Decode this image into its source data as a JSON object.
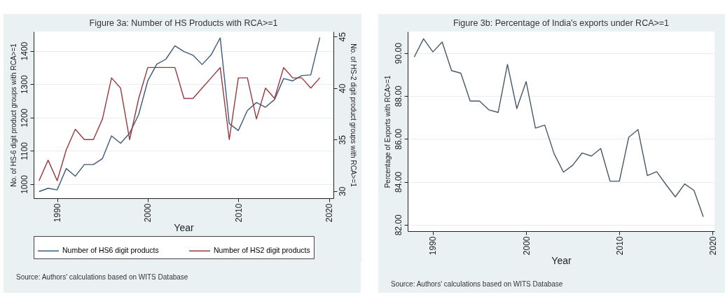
{
  "chart_data": [
    {
      "type": "line",
      "title": "Figure 3a: Number of HS Products with RCA>=1",
      "xlabel": "Year",
      "ylabel": "No. of HS-6 digit product groups with RCA>=1",
      "y2label": "No. of HS-2 digit product groups with RCA>=1",
      "x": [
        1988,
        1989,
        1990,
        1991,
        1992,
        1993,
        1994,
        1995,
        1996,
        1997,
        1998,
        1999,
        2000,
        2001,
        2002,
        2003,
        2004,
        2005,
        2006,
        2007,
        2008,
        2009,
        2010,
        2011,
        2012,
        2013,
        2014,
        2015,
        2016,
        2017,
        2018,
        2019
      ],
      "series": [
        {
          "name": "Number of HS6 digit products",
          "color": "#3d5a78",
          "values": [
            978,
            988,
            983,
            1047,
            1024,
            1059,
            1059,
            1077,
            1145,
            1123,
            1153,
            1209,
            1310,
            1360,
            1375,
            1415,
            1398,
            1387,
            1359,
            1388,
            1439,
            1182,
            1161,
            1221,
            1245,
            1231,
            1254,
            1317,
            1310,
            1326,
            1328,
            1440
          ]
        },
        {
          "name": "Number of HS2 digit products",
          "color": "#98383f",
          "axis": "y2",
          "values": [
            31,
            33,
            31,
            34,
            36,
            35,
            35,
            37,
            41,
            40,
            35,
            39,
            42,
            42,
            42,
            42,
            39,
            39,
            40,
            41,
            42,
            35,
            41,
            41,
            37,
            40,
            39,
            42,
            41,
            41,
            40,
            41
          ]
        }
      ],
      "xlim": [
        1987.4,
        2020.5
      ],
      "xticks": [
        1990,
        2000,
        2010,
        2020
      ],
      "ylim": [
        958,
        1458
      ],
      "yticks": [
        1000,
        1100,
        1200,
        1300,
        1400
      ],
      "y2lim": [
        29.3,
        45.5
      ],
      "y2ticks": [
        30,
        35,
        40,
        45
      ],
      "grid": "y",
      "legend": "bottom",
      "annotations": [
        "Source: Authors' calculations based on WITS Database"
      ]
    },
    {
      "type": "line",
      "title": "Figure 3b: Percentage of India's exports under RCA>=1",
      "xlabel": "Year",
      "ylabel": "Percentage of Exports with RCA>=1",
      "x": [
        1988,
        1989,
        1990,
        1991,
        1992,
        1993,
        1994,
        1995,
        1996,
        1997,
        1998,
        1999,
        2000,
        2001,
        2002,
        2003,
        2004,
        2005,
        2006,
        2007,
        2008,
        2009,
        2010,
        2011,
        2012,
        2013,
        2014,
        2015,
        2016,
        2017,
        2018,
        2019
      ],
      "series": [
        {
          "color": "#465868",
          "values": [
            89.81,
            90.66,
            90.05,
            90.51,
            89.18,
            89.06,
            87.76,
            87.76,
            87.35,
            87.23,
            89.47,
            87.41,
            88.67,
            86.5,
            86.64,
            85.31,
            84.45,
            84.77,
            85.34,
            85.2,
            85.55,
            84.03,
            84.03,
            86.07,
            86.43,
            84.29,
            84.47,
            83.87,
            83.3,
            83.9,
            83.6,
            82.37
          ]
        }
      ],
      "xlim": [
        1987.3,
        2020.2
      ],
      "xticks": [
        1990,
        2000,
        2010,
        2020
      ],
      "ylim": [
        81.7,
        91.0
      ],
      "yticks": [
        {
          "value": 82,
          "label": "82.00"
        },
        {
          "value": 84,
          "label": "84.00"
        },
        {
          "value": 86,
          "label": "86.00"
        },
        {
          "value": 88,
          "label": "88.00"
        },
        {
          "value": 90,
          "label": "90.00"
        }
      ],
      "grid": "y",
      "annotations": [
        "Source: Authors' calculations based on WITS Database"
      ]
    }
  ]
}
